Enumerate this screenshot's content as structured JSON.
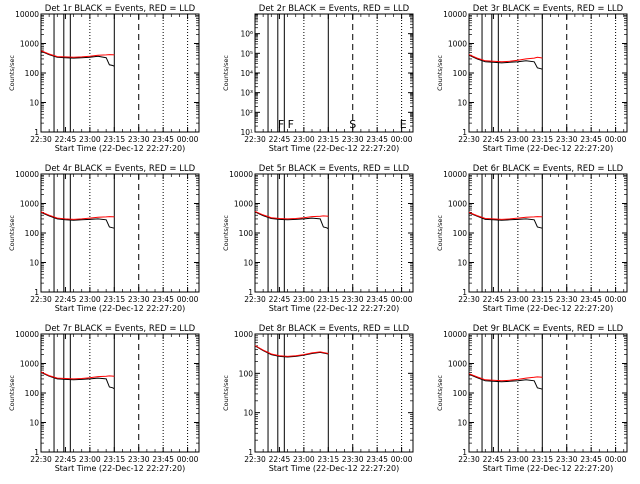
{
  "x_ticks": [
    "22:30",
    "22:45",
    "23:00",
    "23:15",
    "23:30",
    "23:45",
    "00:00"
  ],
  "xlabel": "Start Time (22-Dec-12 22:27:20)",
  "ylabel": "Counts/sec",
  "time_range_min": [
    0,
    97
  ],
  "vertical_markers": {
    "dotted": [
      30,
      75,
      90
    ],
    "solid": [
      8,
      14,
      18,
      45
    ],
    "dashed": [
      60
    ],
    "dashdot": [
      97
    ]
  },
  "marker_labels": [
    {
      "text": "F",
      "at": 16
    },
    {
      "text": "F",
      "at": 22
    },
    {
      "text": "S",
      "at": 60
    },
    {
      "text": "E",
      "at": 91
    }
  ],
  "colors": {
    "events": "#000000",
    "lld": "#ff0000"
  },
  "chart_data": [
    {
      "type": "line",
      "title": "Det 1r BLACK = Events, RED = LLD",
      "scale": "log",
      "ylim": [
        1,
        10000
      ],
      "y_ticks": [
        "1",
        "10",
        "100",
        "1000",
        "10000"
      ],
      "x": [
        0,
        5,
        10,
        15,
        20,
        25,
        30,
        35,
        40,
        42,
        44,
        45
      ],
      "series": [
        {
          "values": [
            550,
            420,
            340,
            330,
            320,
            330,
            340,
            370,
            330,
            190,
            180,
            170
          ],
          "color": "#000000"
        },
        {
          "values": [
            570,
            440,
            360,
            350,
            340,
            350,
            370,
            400,
            410,
            420,
            415,
            410
          ],
          "color": "#ff0000"
        }
      ]
    },
    {
      "type": "line",
      "title": "Det 2r BLACK = Events, RED = LLD",
      "scale": "log",
      "ylim": [
        1,
        1000000
      ],
      "y_ticks": [
        "10¹",
        "10²",
        "10³",
        "10⁴",
        "10⁵",
        "10⁶"
      ],
      "show_marker_labels": true,
      "x": [],
      "series": []
    },
    {
      "type": "line",
      "title": "Det 3r BLACK = Events, RED = LLD",
      "scale": "log",
      "ylim": [
        1,
        10000
      ],
      "y_ticks": [
        "1",
        "10",
        "100",
        "1000",
        "10000"
      ],
      "x": [
        0,
        5,
        10,
        15,
        20,
        25,
        30,
        35,
        40,
        42,
        44,
        45
      ],
      "series": [
        {
          "values": [
            400,
            300,
            240,
            230,
            220,
            230,
            240,
            260,
            240,
            150,
            140,
            135
          ],
          "color": "#000000"
        },
        {
          "values": [
            420,
            320,
            260,
            250,
            240,
            250,
            270,
            300,
            320,
            340,
            330,
            320
          ],
          "color": "#ff0000"
        }
      ]
    },
    {
      "type": "line",
      "title": "Det 4r BLACK = Events, RED = LLD",
      "scale": "log",
      "ylim": [
        1,
        10000
      ],
      "y_ticks": [
        "1",
        "10",
        "100",
        "1000",
        "10000"
      ],
      "x": [
        0,
        5,
        10,
        15,
        20,
        25,
        30,
        35,
        40,
        42,
        44,
        45
      ],
      "series": [
        {
          "values": [
            500,
            380,
            300,
            280,
            270,
            280,
            290,
            300,
            280,
            160,
            150,
            145
          ],
          "color": "#000000"
        },
        {
          "values": [
            520,
            400,
            320,
            300,
            290,
            300,
            320,
            340,
            350,
            360,
            355,
            350
          ],
          "color": "#ff0000"
        }
      ]
    },
    {
      "type": "line",
      "title": "Det 5r BLACK = Events, RED = LLD",
      "scale": "log",
      "ylim": [
        1,
        10000
      ],
      "y_ticks": [
        "1",
        "10",
        "100",
        "1000",
        "10000"
      ],
      "x": [
        0,
        5,
        10,
        15,
        20,
        25,
        30,
        35,
        40,
        42,
        44,
        45
      ],
      "series": [
        {
          "values": [
            520,
            390,
            310,
            290,
            280,
            290,
            300,
            320,
            300,
            160,
            150,
            140
          ],
          "color": "#000000"
        },
        {
          "values": [
            540,
            410,
            330,
            310,
            300,
            310,
            330,
            360,
            370,
            380,
            375,
            370
          ],
          "color": "#ff0000"
        }
      ]
    },
    {
      "type": "line",
      "title": "Det 6r BLACK = Events, RED = LLD",
      "scale": "log",
      "ylim": [
        1,
        10000
      ],
      "y_ticks": [
        "1",
        "10",
        "100",
        "1000",
        "10000"
      ],
      "x": [
        0,
        5,
        10,
        15,
        20,
        25,
        30,
        35,
        40,
        42,
        44,
        45
      ],
      "series": [
        {
          "values": [
            480,
            370,
            290,
            280,
            270,
            280,
            290,
            300,
            280,
            160,
            150,
            145
          ],
          "color": "#000000"
        },
        {
          "values": [
            500,
            390,
            310,
            300,
            290,
            300,
            320,
            340,
            350,
            360,
            355,
            350
          ],
          "color": "#ff0000"
        }
      ]
    },
    {
      "type": "line",
      "title": "Det 7r BLACK = Events, RED = LLD",
      "scale": "log",
      "ylim": [
        1,
        10000
      ],
      "y_ticks": [
        "1",
        "10",
        "100",
        "1000",
        "10000"
      ],
      "x": [
        0,
        5,
        10,
        15,
        20,
        25,
        30,
        35,
        40,
        42,
        44,
        45
      ],
      "series": [
        {
          "values": [
            500,
            370,
            300,
            290,
            280,
            290,
            300,
            320,
            300,
            160,
            150,
            140
          ],
          "color": "#000000"
        },
        {
          "values": [
            520,
            390,
            320,
            310,
            300,
            310,
            330,
            360,
            370,
            380,
            375,
            370
          ],
          "color": "#ff0000"
        }
      ]
    },
    {
      "type": "line",
      "title": "Det 8r BLACK = Events, RED = LLD",
      "scale": "log",
      "ylim": [
        1,
        1000
      ],
      "y_ticks": [
        "1",
        "10",
        "100",
        "1000"
      ],
      "x": [
        0,
        5,
        10,
        15,
        20,
        25,
        30,
        35,
        40,
        45
      ],
      "series": [
        {
          "values": [
            500,
            380,
            300,
            270,
            260,
            270,
            290,
            320,
            340,
            310
          ],
          "color": "#000000"
        },
        {
          "values": [
            510,
            390,
            310,
            280,
            270,
            280,
            300,
            330,
            350,
            320
          ],
          "color": "#ff0000"
        }
      ]
    },
    {
      "type": "line",
      "title": "Det 9r BLACK = Events, RED = LLD",
      "scale": "log",
      "ylim": [
        1,
        10000
      ],
      "y_ticks": [
        "1",
        "10",
        "100",
        "1000",
        "10000"
      ],
      "x": [
        0,
        5,
        10,
        15,
        20,
        25,
        30,
        35,
        40,
        42,
        44,
        45
      ],
      "series": [
        {
          "values": [
            430,
            330,
            260,
            250,
            240,
            250,
            260,
            280,
            260,
            150,
            140,
            135
          ],
          "color": "#000000"
        },
        {
          "values": [
            450,
            350,
            280,
            270,
            260,
            270,
            290,
            320,
            340,
            350,
            345,
            340
          ],
          "color": "#ff0000"
        }
      ]
    }
  ]
}
